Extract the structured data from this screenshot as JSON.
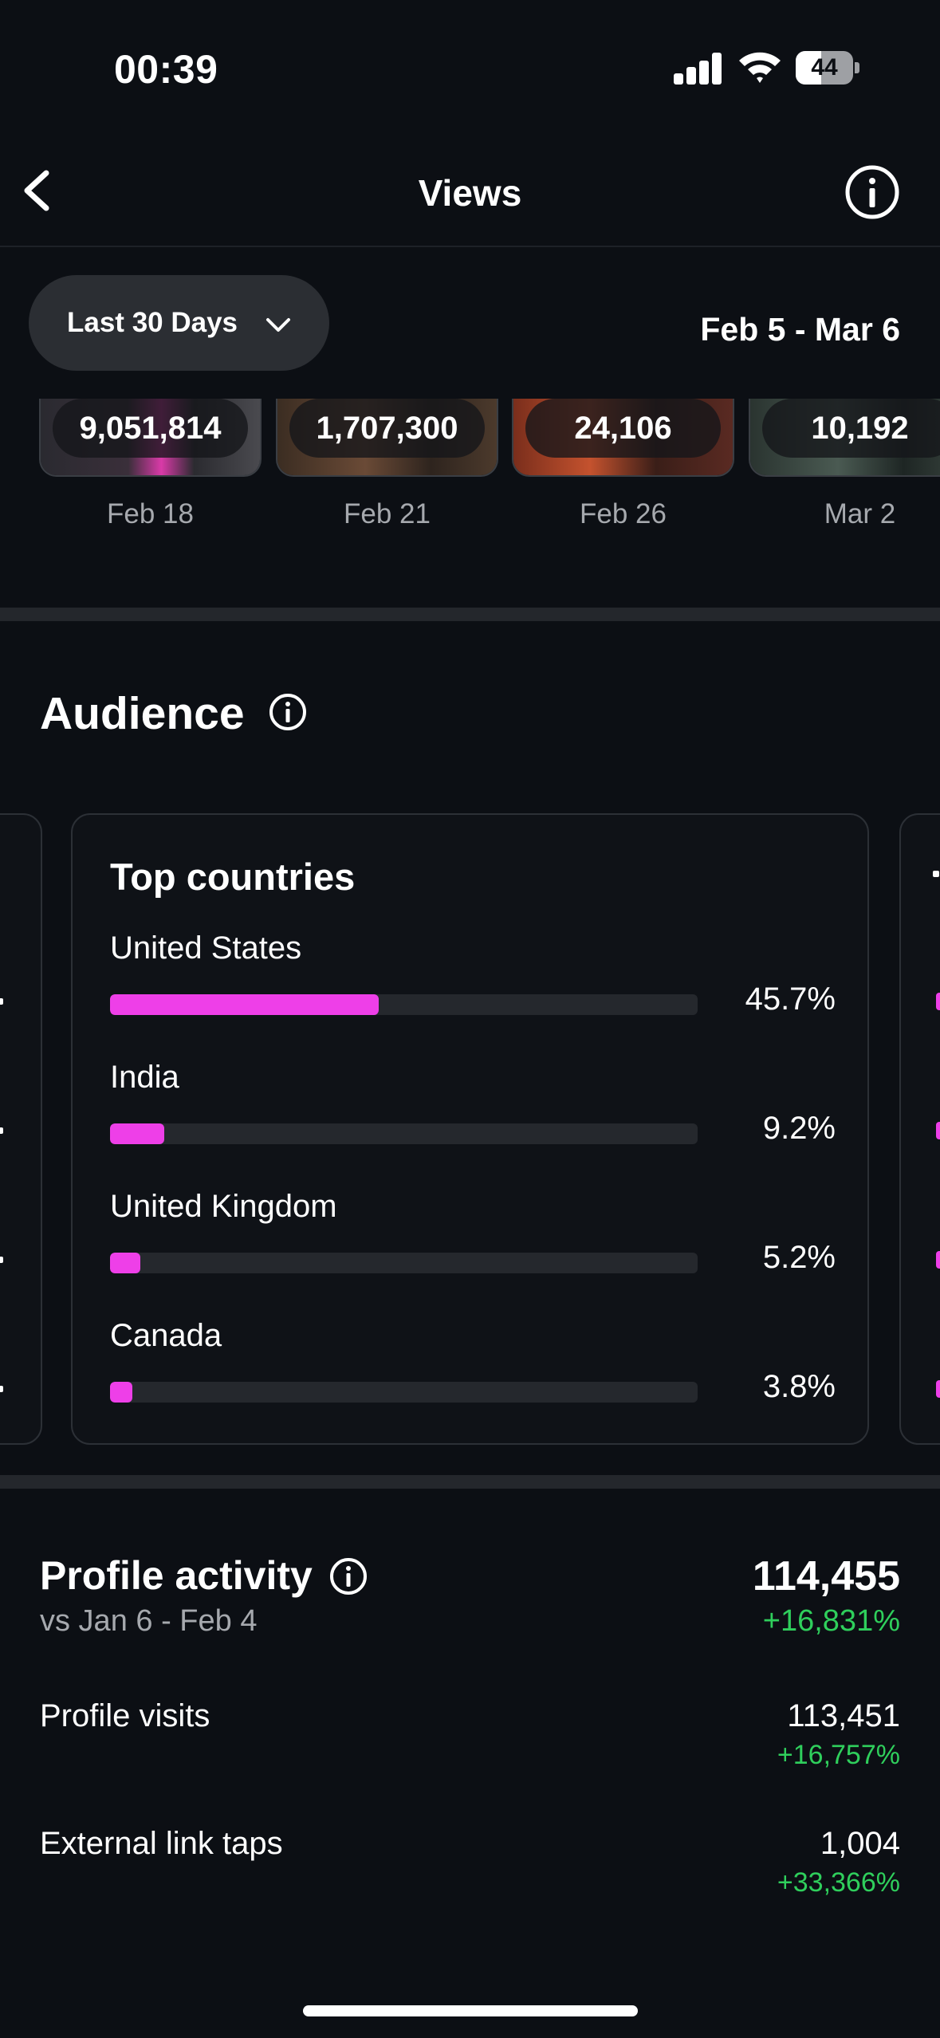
{
  "status_bar": {
    "time": "00:39",
    "battery": "44",
    "battery_level": 0.44
  },
  "nav": {
    "title": "Views",
    "back_icon": "chevron-left-icon",
    "info_icon": "info-icon"
  },
  "filter": {
    "range_label": "Last 30 Days",
    "date_range": "Feb 5 - Mar 6"
  },
  "thumbnails": [
    {
      "count": "9,051,814",
      "date": "Feb 18"
    },
    {
      "count": "1,707,300",
      "date": "Feb 21"
    },
    {
      "count": "24,106",
      "date": "Feb 26"
    },
    {
      "count": "10,192",
      "date": "Mar 2"
    }
  ],
  "audience": {
    "title": "Audience",
    "top_countries": {
      "title": "Top countries",
      "items": [
        {
          "name": "United States",
          "percent_label": "45.7%",
          "value": 45.7
        },
        {
          "name": "India",
          "percent_label": "9.2%",
          "value": 9.2
        },
        {
          "name": "United Kingdom",
          "percent_label": "5.2%",
          "value": 5.2
        },
        {
          "name": "Canada",
          "percent_label": "3.8%",
          "value": 3.8
        }
      ]
    }
  },
  "profile_activity": {
    "title": "Profile activity",
    "comparison": "vs Jan 6 - Feb 4",
    "total": "114,455",
    "total_change": "+16,831%",
    "metrics": [
      {
        "label": "Profile visits",
        "value": "113,451",
        "change": "+16,757%"
      },
      {
        "label": "External link taps",
        "value": "1,004",
        "change": "+33,366%"
      }
    ]
  },
  "colors": {
    "background": "#0c0f14",
    "accent": "#ee3fe8",
    "positive": "#2fcf5c"
  }
}
